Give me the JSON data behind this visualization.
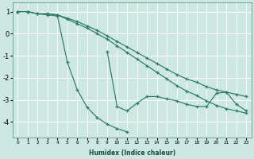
{
  "xlabel": "Humidex (Indice chaleur)",
  "background_color": "#cce8e0",
  "grid_color": "#ffffff",
  "line_color": "#2d7a6a",
  "xlim": [
    -0.5,
    23.5
  ],
  "ylim": [
    -4.7,
    1.4
  ],
  "xticks": [
    0,
    1,
    2,
    3,
    4,
    5,
    6,
    7,
    8,
    9,
    10,
    11,
    12,
    13,
    14,
    15,
    16,
    17,
    18,
    19,
    20,
    21,
    22,
    23
  ],
  "yticks": [
    -4,
    -3,
    -2,
    -1,
    0,
    1
  ],
  "line1_x": [
    0,
    1,
    2,
    3,
    4,
    5,
    6,
    7,
    8,
    9,
    10,
    11
  ],
  "line1_y": [
    1.0,
    1.0,
    0.9,
    0.85,
    0.8,
    -1.3,
    -2.55,
    -3.35,
    -3.8,
    -4.1,
    -4.3,
    -4.45
  ],
  "line2_x": [
    0,
    1,
    2,
    3,
    4,
    5,
    6,
    7,
    8,
    9,
    10,
    11,
    12,
    13,
    14,
    15,
    16,
    17,
    18,
    19,
    20,
    21,
    22,
    23
  ],
  "line2_y": [
    1.0,
    1.0,
    0.9,
    0.9,
    0.85,
    0.7,
    0.55,
    0.35,
    0.15,
    -0.1,
    -0.35,
    -0.6,
    -0.85,
    -1.1,
    -1.35,
    -1.6,
    -1.85,
    -2.05,
    -2.2,
    -2.4,
    -2.55,
    -2.65,
    -2.75,
    -2.85
  ],
  "line3_x": [
    0,
    1,
    2,
    3,
    4,
    5,
    6,
    7,
    8,
    9,
    10,
    11,
    12,
    13,
    14,
    15,
    16,
    17,
    18,
    19,
    20,
    21,
    22,
    23
  ],
  "line3_y": [
    1.0,
    1.0,
    0.9,
    0.9,
    0.85,
    0.65,
    0.45,
    0.25,
    0.0,
    -0.25,
    -0.55,
    -0.85,
    -1.15,
    -1.45,
    -1.75,
    -2.05,
    -2.35,
    -2.6,
    -2.8,
    -3.05,
    -3.25,
    -3.4,
    -3.5,
    -3.6
  ],
  "line4_x": [
    9,
    10,
    11,
    12,
    13,
    14,
    15,
    16,
    17,
    18,
    19,
    20,
    21,
    22,
    23
  ],
  "line4_y": [
    -0.8,
    -3.3,
    -3.5,
    -3.15,
    -2.85,
    -2.85,
    -2.95,
    -3.05,
    -3.2,
    -3.3,
    -3.3,
    -2.7,
    -2.65,
    -3.2,
    -3.5
  ]
}
